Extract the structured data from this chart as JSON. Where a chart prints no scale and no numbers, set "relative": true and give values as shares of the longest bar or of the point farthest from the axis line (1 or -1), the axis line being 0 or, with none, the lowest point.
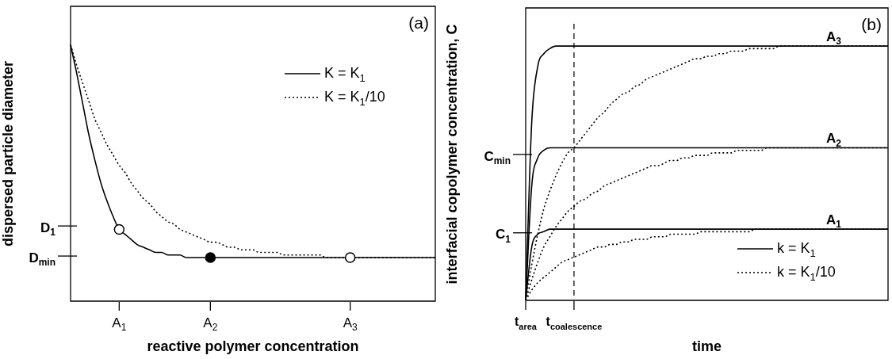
{
  "chart_data": [
    {
      "type": "line",
      "title": "(a)",
      "xlabel": "reactive polymer concentration",
      "ylabel": "dispersed particle diameter",
      "relative": true,
      "marker": "none",
      "legend": "top right",
      "categories": [
        null,
        null,
        null,
        null,
        null,
        null,
        null,
        null,
        "A$_{1}$",
        null,
        null,
        null,
        null,
        null,
        null,
        null,
        null,
        null,
        null,
        null,
        null,
        null,
        null,
        "A$_{2}$",
        null,
        null,
        null,
        null,
        null,
        null,
        null,
        null,
        null,
        null,
        null,
        null,
        null,
        null,
        null,
        null,
        null,
        null,
        null,
        null,
        null,
        null,
        "A$_{3}$",
        null,
        null,
        null,
        null,
        null,
        null,
        null,
        null,
        null,
        null,
        null,
        null,
        null,
        null
      ],
      "annotations": [
        "D$_{1}$",
        "D$_{min}$"
      ],
      "series": [
        {
          "name": "K = K$_{1}$",
          "color": "#000000",
          "line_style": "solid",
          "values": [
            1,
            0.89,
            0.77,
            0.65,
            0.55,
            0.46,
            0.39,
            0.33,
            0.28,
            0.26,
            0.24,
            0.22,
            0.21,
            0.2,
            0.19,
            0.19,
            0.18,
            0.18,
            0.18,
            0.17,
            0.17,
            0.17,
            0.17,
            0.17,
            0.17,
            0.17,
            0.17,
            0.17,
            0.17,
            0.17,
            0.17,
            0.17,
            0.17,
            0.17,
            0.17,
            0.17,
            0.17,
            0.17,
            0.17,
            0.17,
            0.17,
            0.17,
            0.17,
            0.17,
            0.17,
            0.17,
            0.17,
            0.17,
            0.17,
            0.17,
            0.17,
            0.17,
            0.17,
            0.17,
            0.17,
            0.17,
            0.17,
            0.17,
            0.17,
            0.17,
            0.17
          ]
        },
        {
          "name": "K = K$_{1}$/10",
          "color": "#000000",
          "line_style": "dotted",
          "values": [
            1,
            0.92,
            0.85,
            0.78,
            0.71,
            0.66,
            0.61,
            0.57,
            0.53,
            0.5,
            0.46,
            0.43,
            0.4,
            0.38,
            0.35,
            0.33,
            0.31,
            0.3,
            0.28,
            0.27,
            0.26,
            0.25,
            0.24,
            0.23,
            0.23,
            0.22,
            0.21,
            0.21,
            0.2,
            0.2,
            0.2,
            0.19,
            0.19,
            0.19,
            0.19,
            0.18,
            0.18,
            0.18,
            0.18,
            0.18,
            0.18,
            0.18,
            0.17,
            0.17,
            0.17,
            0.17,
            0.17,
            0.17,
            0.17,
            0.17,
            0.17,
            0.17,
            0.17,
            0.17,
            0.17,
            0.17,
            0.17,
            0.17,
            0.17,
            0.17,
            0.17
          ]
        },
        {
          "type": "scatter",
          "marker": "circle",
          "color": "#000000",
          "colors": [
            "#ffffff",
            "#000000",
            "#ffffff"
          ],
          "x": [
            "A$_{1}$",
            "A$_{2}$",
            "A$_{3}$"
          ],
          "values": [
            0.28,
            0.17,
            0.17
          ]
        }
      ]
    },
    {
      "type": "line",
      "title": "(b)",
      "xlabel": "time",
      "ylabel": "interfacial copolymer concentration, C",
      "relative": true,
      "marker": "none",
      "legend": "bottom right",
      "categories": [
        "t$_{area}$",
        null,
        null,
        null,
        null,
        null,
        null,
        null,
        "t$_{coalescence}$",
        null,
        null,
        null,
        null,
        null,
        null,
        null,
        null,
        null,
        null,
        null,
        null,
        null,
        null,
        null,
        null,
        null,
        null,
        null,
        null,
        null,
        null,
        null,
        null,
        null,
        null,
        null,
        null,
        null,
        null,
        null,
        null,
        null,
        null,
        null,
        null,
        null,
        null,
        null,
        null,
        null,
        null,
        null,
        null,
        null,
        null,
        null,
        null,
        null,
        null,
        null,
        null
      ],
      "ref_lines": [
        {
          "axis": "x",
          "value": "t$_{coalescence}$",
          "line_style": "dashed",
          "color": "#000000"
        }
      ],
      "annotations": [
        {
          "text": "A$_{3}$",
          "y": 1
        },
        {
          "text": "A$_{2}$",
          "y": 0.6
        },
        {
          "text": "A$_{1}$",
          "y": 0.28
        },
        "C$_{min}$",
        "C$_{1}$"
      ],
      "series": [
        {
          "color": "#000000",
          "line_style": "solid",
          "values": [
            0,
            0.7,
            0.92,
            0.97,
            0.99,
            1,
            1,
            1,
            1,
            1,
            1,
            1,
            1,
            1,
            1,
            1,
            1,
            1,
            1,
            1,
            1,
            1,
            1,
            1,
            1,
            1,
            1,
            1,
            1,
            1,
            1,
            1,
            1,
            1,
            1,
            1,
            1,
            1,
            1,
            1,
            1,
            1,
            1,
            1,
            1,
            1,
            1,
            1,
            1,
            1,
            1,
            1,
            1,
            1,
            1,
            1,
            1,
            1,
            1,
            1,
            1
          ]
        },
        {
          "color": "#000000",
          "line_style": "solid",
          "values": [
            0,
            0.45,
            0.56,
            0.59,
            0.6,
            0.6,
            0.6,
            0.6,
            0.6,
            0.6,
            0.6,
            0.6,
            0.6,
            0.6,
            0.6,
            0.6,
            0.6,
            0.6,
            0.6,
            0.6,
            0.6,
            0.6,
            0.6,
            0.6,
            0.6,
            0.6,
            0.6,
            0.6,
            0.6,
            0.6,
            0.6,
            0.6,
            0.6,
            0.6,
            0.6,
            0.6,
            0.6,
            0.6,
            0.6,
            0.6,
            0.6,
            0.6,
            0.6,
            0.6,
            0.6,
            0.6,
            0.6,
            0.6,
            0.6,
            0.6,
            0.6,
            0.6,
            0.6,
            0.6,
            0.6,
            0.6,
            0.6,
            0.6,
            0.6,
            0.6,
            0.6
          ]
        },
        {
          "name": "k = K$_{1}$",
          "color": "#000000",
          "line_style": "solid",
          "values": [
            0,
            0.21,
            0.26,
            0.27,
            0.28,
            0.28,
            0.28,
            0.28,
            0.28,
            0.28,
            0.28,
            0.28,
            0.28,
            0.28,
            0.28,
            0.28,
            0.28,
            0.28,
            0.28,
            0.28,
            0.28,
            0.28,
            0.28,
            0.28,
            0.28,
            0.28,
            0.28,
            0.28,
            0.28,
            0.28,
            0.28,
            0.28,
            0.28,
            0.28,
            0.28,
            0.28,
            0.28,
            0.28,
            0.28,
            0.28,
            0.28,
            0.28,
            0.28,
            0.28,
            0.28,
            0.28,
            0.28,
            0.28,
            0.28,
            0.28,
            0.28,
            0.28,
            0.28,
            0.28,
            0.28,
            0.28,
            0.28,
            0.28,
            0.28,
            0.28,
            0.28
          ]
        },
        {
          "color": "#000000",
          "line_style": "dotted",
          "values": [
            0,
            0.14,
            0.26,
            0.36,
            0.43,
            0.49,
            0.54,
            0.58,
            0.6,
            0.63,
            0.66,
            0.69,
            0.72,
            0.74,
            0.77,
            0.79,
            0.81,
            0.82,
            0.84,
            0.85,
            0.87,
            0.88,
            0.89,
            0.9,
            0.91,
            0.92,
            0.93,
            0.94,
            0.95,
            0.95,
            0.96,
            0.96,
            0.97,
            0.97,
            0.98,
            0.98,
            0.98,
            0.99,
            0.99,
            0.99,
            0.99,
            0.99,
            1,
            1,
            1,
            1,
            1,
            1,
            1,
            1,
            1,
            1,
            1,
            1,
            1,
            1,
            1,
            1,
            1,
            1,
            1
          ]
        },
        {
          "color": "#000000",
          "line_style": "dotted",
          "values": [
            0,
            0.08,
            0.15,
            0.21,
            0.25,
            0.29,
            0.32,
            0.35,
            0.37,
            0.39,
            0.4,
            0.42,
            0.43,
            0.45,
            0.46,
            0.47,
            0.48,
            0.49,
            0.5,
            0.51,
            0.52,
            0.53,
            0.53,
            0.54,
            0.55,
            0.55,
            0.56,
            0.56,
            0.57,
            0.57,
            0.57,
            0.58,
            0.58,
            0.58,
            0.58,
            0.59,
            0.59,
            0.59,
            0.59,
            0.59,
            0.6,
            0.6,
            0.6,
            0.6,
            0.6,
            0.6,
            0.6,
            0.6,
            0.6,
            0.6,
            0.6,
            0.6,
            0.6,
            0.6,
            0.6,
            0.6,
            0.6,
            0.6,
            0.6,
            0.6,
            0.6
          ]
        },
        {
          "name": "k = K$_{1}$/10",
          "color": "#000000",
          "line_style": "dotted",
          "values": [
            0,
            0.04,
            0.07,
            0.09,
            0.11,
            0.13,
            0.15,
            0.16,
            0.17,
            0.18,
            0.19,
            0.2,
            0.21,
            0.21,
            0.22,
            0.22,
            0.23,
            0.23,
            0.24,
            0.24,
            0.24,
            0.25,
            0.25,
            0.25,
            0.26,
            0.26,
            0.26,
            0.26,
            0.26,
            0.27,
            0.27,
            0.27,
            0.27,
            0.27,
            0.27,
            0.27,
            0.27,
            0.27,
            0.28,
            0.28,
            0.28,
            0.28,
            0.28,
            0.28,
            0.28,
            0.28,
            0.28,
            0.28,
            0.28,
            0.28,
            0.28,
            0.28,
            0.28,
            0.28,
            0.28,
            0.28,
            0.28,
            0.28,
            0.28,
            0.28,
            0.28
          ]
        }
      ]
    }
  ]
}
